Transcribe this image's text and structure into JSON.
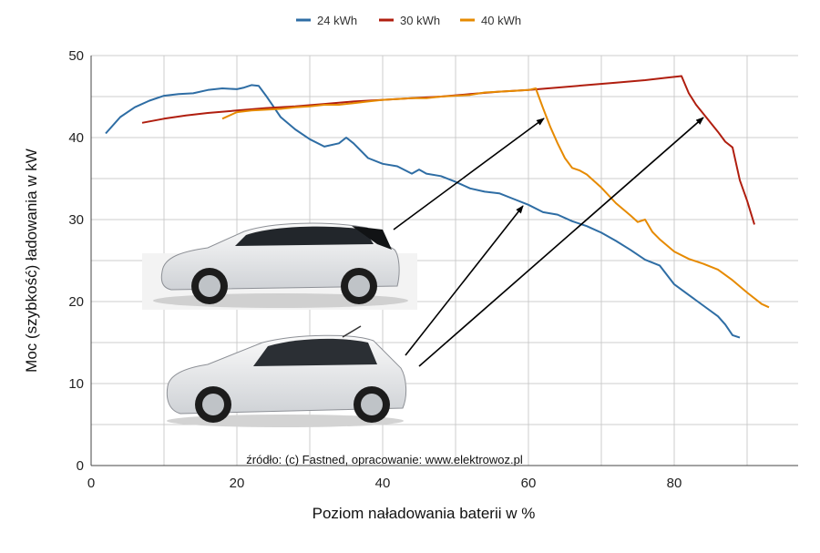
{
  "chart_data": {
    "type": "line",
    "xlabel": "Poziom naładowania baterii w %",
    "ylabel": "Moc (szybkość) ładowania w kW",
    "xlim": [
      0,
      97
    ],
    "ylim": [
      0,
      50
    ],
    "xticks": [
      0,
      20,
      40,
      60,
      80
    ],
    "yticks": [
      0,
      10,
      20,
      30,
      40,
      50
    ],
    "grid": true,
    "legend_position": "top-center",
    "source": "źródło: (c) Fastned, opracowanie: www.elektrowoz.pl",
    "series": [
      {
        "name": "24 kWh",
        "color": "#2E6DA4",
        "x": [
          2,
          4,
          6,
          8,
          10,
          12,
          14,
          16,
          18,
          20,
          21,
          22,
          23,
          24,
          26,
          28,
          30,
          32,
          34,
          35,
          36,
          38,
          40,
          42,
          44,
          45,
          46,
          48,
          50,
          52,
          54,
          56,
          58,
          60,
          62,
          64,
          66,
          68,
          70,
          72,
          74,
          76,
          78,
          80,
          82,
          84,
          86,
          87,
          88,
          89
        ],
        "y": [
          40.5,
          42.5,
          43.7,
          44.5,
          45.1,
          45.3,
          45.4,
          45.8,
          46,
          45.9,
          46.1,
          46.4,
          46.3,
          45.1,
          42.5,
          41,
          39.8,
          38.9,
          39.3,
          40,
          39.3,
          37.5,
          36.8,
          36.5,
          35.6,
          36.1,
          35.6,
          35.3,
          34.6,
          33.8,
          33.4,
          33.2,
          32.5,
          31.8,
          30.9,
          30.6,
          29.8,
          29.2,
          28.4,
          27.4,
          26.3,
          25.1,
          24.4,
          22.1,
          20.8,
          19.5,
          18.2,
          17.2,
          15.9,
          15.6
        ]
      },
      {
        "name": "30 kWh",
        "color": "#B01E0F",
        "x": [
          7,
          10,
          13,
          16,
          20,
          24,
          28,
          32,
          36,
          40,
          44,
          48,
          52,
          56,
          60,
          64,
          68,
          72,
          76,
          79,
          80,
          81,
          82,
          83,
          84,
          86,
          87,
          88,
          89,
          90,
          91
        ],
        "y": [
          41.8,
          42.3,
          42.7,
          43,
          43.3,
          43.6,
          43.8,
          44.1,
          44.4,
          44.6,
          44.8,
          45,
          45.3,
          45.6,
          45.8,
          46.1,
          46.4,
          46.7,
          47,
          47.3,
          47.4,
          47.5,
          45.4,
          44,
          42.9,
          40.7,
          39.5,
          38.8,
          34.8,
          32.3,
          29.4
        ]
      },
      {
        "name": "40 kWh",
        "color": "#E68A00",
        "x": [
          18,
          20,
          22,
          24,
          26,
          28,
          30,
          32,
          34,
          36,
          38,
          40,
          42,
          44,
          46,
          48,
          50,
          52,
          54,
          56,
          58,
          60,
          61,
          62,
          63,
          64,
          65,
          66,
          67,
          68,
          70,
          72,
          74,
          75,
          76,
          77,
          78,
          80,
          82,
          84,
          86,
          88,
          90,
          92,
          93
        ],
        "y": [
          42.3,
          43.1,
          43.3,
          43.4,
          43.5,
          43.7,
          43.8,
          44,
          44,
          44.2,
          44.4,
          44.6,
          44.7,
          44.8,
          44.8,
          45,
          45.1,
          45.2,
          45.5,
          45.6,
          45.7,
          45.8,
          46,
          43.6,
          41.3,
          39.3,
          37.5,
          36.3,
          36,
          35.5,
          33.9,
          32,
          30.5,
          29.7,
          30,
          28.5,
          27.6,
          26.1,
          25.2,
          24.6,
          23.9,
          22.6,
          21.1,
          19.7,
          19.3
        ]
      }
    ]
  }
}
